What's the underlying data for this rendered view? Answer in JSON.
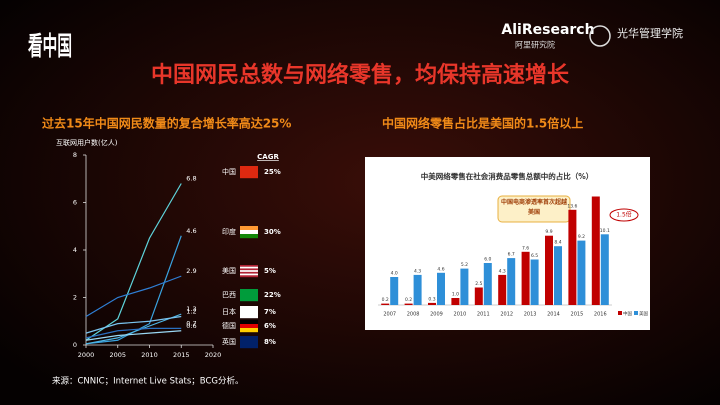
{
  "header": {
    "logo": "看中国",
    "partner": "AliResearch",
    "partner_cn": "阿里研究院",
    "school": "光华管理学院"
  },
  "title": "中国网民总数与网络零售，均保持高速增长",
  "chart_data": [
    {
      "type": "line",
      "heading": "过去15年中国网民数量的复合增长率高达25%",
      "ylabel": "互联网用户数(亿人)",
      "cagr_title": "CAGR",
      "x": [
        2000,
        2005,
        2010,
        2015
      ],
      "xlim": [
        2000,
        2020
      ],
      "xticks": [
        2000,
        2005,
        2010,
        2015,
        2020
      ],
      "ylim": [
        0,
        8
      ],
      "yticks": [
        0,
        2,
        4,
        6,
        8
      ],
      "series": [
        {
          "name": "中国",
          "cagr": "25%",
          "color": "#5fd4dc",
          "values": [
            0.2,
            1.1,
            4.5,
            6.8
          ]
        },
        {
          "name": "印度",
          "cagr": "30%",
          "color": "#3aa3e0",
          "values": [
            0.05,
            0.2,
            0.9,
            4.6
          ]
        },
        {
          "name": "美国",
          "cagr": "5%",
          "color": "#2f7fd6",
          "values": [
            1.2,
            2.0,
            2.4,
            2.9
          ]
        },
        {
          "name": "巴西",
          "cagr": "22%",
          "color": "#4fb8e8",
          "values": [
            0.05,
            0.3,
            0.8,
            1.3
          ]
        },
        {
          "name": "日本",
          "cagr": "7%",
          "color": "#7ac4f0",
          "values": [
            0.5,
            0.9,
            1.0,
            1.2
          ]
        },
        {
          "name": "德国",
          "cagr": "6%",
          "color": "#2a6fc0",
          "values": [
            0.3,
            0.6,
            0.7,
            0.7
          ]
        },
        {
          "name": "英国",
          "cagr": "8%",
          "color": "#9ad8f4",
          "values": [
            0.2,
            0.4,
            0.5,
            0.6
          ]
        }
      ]
    },
    {
      "type": "bar",
      "heading": "中国网络零售占比是美国的1.5倍以上",
      "title": "中美网络零售在社会消费品零售总额中的占比（%）",
      "annotation": "中国电商渗透率首次超越美国",
      "callout": "1.5倍",
      "categories": [
        "2007",
        "2008",
        "2009",
        "2010",
        "2011",
        "2012",
        "2013",
        "2014",
        "2015",
        "2016"
      ],
      "ylim": [
        0,
        17
      ],
      "series": [
        {
          "name": "中国",
          "color": "#c00000",
          "values": [
            0.2,
            0.2,
            0.3,
            1.0,
            2.5,
            4.3,
            7.6,
            9.9,
            13.6,
            15.5
          ],
          "value_labels": [
            "0.2",
            "0.2",
            "0.3",
            "1.0",
            "2.5",
            "4.3",
            "7.6",
            "9.9",
            "13.6",
            null
          ]
        },
        {
          "name": "美国",
          "color": "#2e8fd8",
          "values": [
            4.0,
            4.3,
            4.6,
            5.2,
            6.0,
            6.7,
            6.5,
            8.4,
            9.2,
            10.1
          ],
          "value_labels": [
            "4.0",
            "4.3",
            "4.6",
            "5.2",
            "6.0",
            "6.7",
            "6.5",
            "8.4",
            "9.2",
            "10.1"
          ]
        }
      ]
    }
  ],
  "source": "来源：CNNIC；Internet Live Stats；BCG分析。"
}
